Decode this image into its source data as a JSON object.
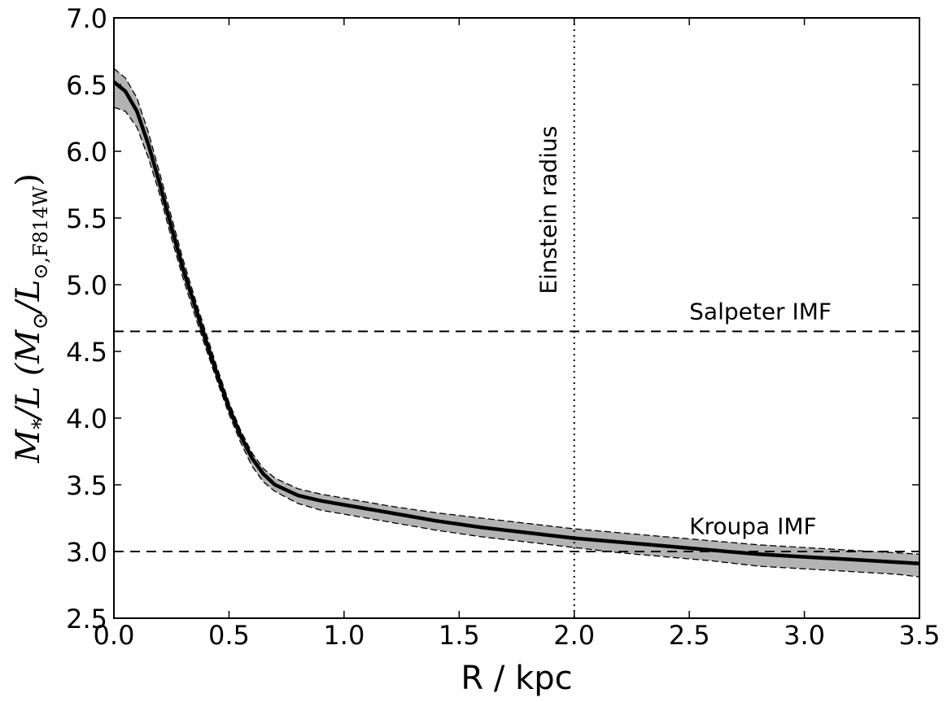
{
  "chart_data": {
    "type": "line",
    "title": "",
    "xlabel": "R / kpc",
    "ylabel": "M*/L (M⊙/L⊙,F814W)",
    "ylabel_parts": {
      "m": "M",
      "star": "*",
      "slash_l": "/L (M",
      "sun1": "⊙",
      "slash_l2": "/L",
      "sun2": "⊙,F814W",
      "close": ")"
    },
    "xlim": [
      0.0,
      3.5
    ],
    "ylim": [
      2.5,
      7.0
    ],
    "xticks": [
      "0.0",
      "0.5",
      "1.0",
      "1.5",
      "2.0",
      "2.5",
      "3.0",
      "3.5"
    ],
    "yticks": [
      "2.5",
      "3.0",
      "3.5",
      "4.0",
      "4.5",
      "5.0",
      "5.5",
      "6.0",
      "6.5",
      "7.0"
    ],
    "grid": false,
    "series": [
      {
        "x": [
          0.0,
          0.05,
          0.1,
          0.15,
          0.2,
          0.25,
          0.3,
          0.35,
          0.4,
          0.45,
          0.5,
          0.55,
          0.6,
          0.65,
          0.7,
          0.8,
          0.9,
          1.0,
          1.2,
          1.4,
          1.6,
          1.8,
          2.0,
          2.2,
          2.4,
          2.6,
          2.8,
          3.0,
          3.2,
          3.4,
          3.5
        ],
        "values": [
          6.52,
          6.45,
          6.3,
          6.05,
          5.75,
          5.43,
          5.12,
          4.85,
          4.58,
          4.32,
          4.08,
          3.87,
          3.7,
          3.58,
          3.5,
          3.42,
          3.38,
          3.35,
          3.29,
          3.23,
          3.18,
          3.14,
          3.1,
          3.07,
          3.04,
          3.01,
          2.98,
          2.96,
          2.94,
          2.92,
          2.91
        ],
        "band_upper": [
          6.62,
          6.55,
          6.4,
          6.14,
          5.83,
          5.51,
          5.19,
          4.91,
          4.64,
          4.37,
          4.12,
          3.91,
          3.74,
          3.62,
          3.55,
          3.47,
          3.43,
          3.4,
          3.34,
          3.29,
          3.25,
          3.21,
          3.17,
          3.14,
          3.11,
          3.08,
          3.05,
          3.03,
          3.01,
          2.99,
          2.98
        ],
        "band_lower": [
          6.33,
          6.3,
          6.18,
          5.95,
          5.67,
          5.35,
          5.05,
          4.78,
          4.52,
          4.27,
          4.03,
          3.82,
          3.64,
          3.52,
          3.45,
          3.36,
          3.31,
          3.28,
          3.22,
          3.16,
          3.11,
          3.07,
          3.03,
          2.99,
          2.96,
          2.93,
          2.89,
          2.87,
          2.85,
          2.83,
          2.81
        ]
      }
    ],
    "hlines": [
      {
        "y": 4.65,
        "label": "Salpeter IMF",
        "label_x": 2.5,
        "label_y": 4.74
      },
      {
        "y": 3.0,
        "label": "Kroupa IMF",
        "label_x": 2.5,
        "label_y": 3.13
      }
    ],
    "vlines": [
      {
        "x": 2.0,
        "label": "Einstein radius",
        "label_y_top": 6.3,
        "label_y_bottom": 4.82
      }
    ]
  }
}
